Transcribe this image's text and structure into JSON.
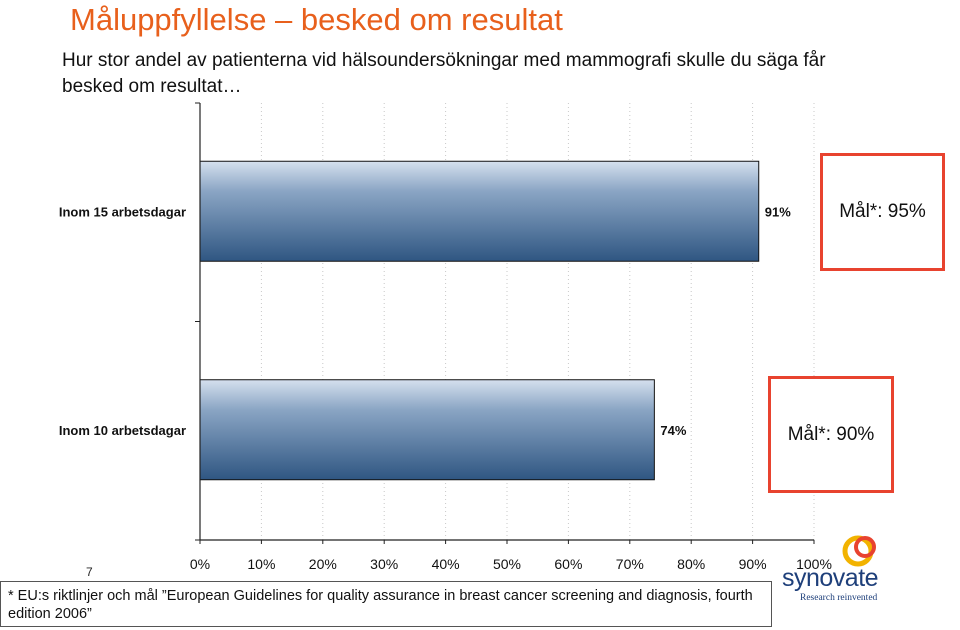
{
  "title": "Måluppfyllelse – besked om resultat",
  "subtitle": "Hur stor andel av patienterna vid hälsoundersökningar med mammografi skulle du säga får besked om resultat…",
  "chart_data": {
    "type": "bar",
    "orientation": "horizontal",
    "categories": [
      "Inom 15 arbetsdagar",
      "Inom 10 arbetsdagar"
    ],
    "values": [
      91,
      74
    ],
    "value_labels": [
      "91%",
      "74%"
    ],
    "xlim": [
      0,
      100
    ],
    "xticks": [
      0,
      10,
      20,
      30,
      40,
      50,
      60,
      70,
      80,
      90,
      100
    ],
    "xtick_labels": [
      "0%",
      "10%",
      "20%",
      "30%",
      "40%",
      "50%",
      "60%",
      "70%",
      "80%",
      "90%",
      "100%"
    ],
    "grid": "vertical dotted",
    "bar_color": "#4a6e97"
  },
  "goals": [
    "Mål*: 95%",
    "Mål*: 90%"
  ],
  "page_number": "7",
  "footnote": "* EU:s riktlinjer och mål ”European Guidelines for quality assurance in breast cancer screening and diagnosis, fourth edition 2006”",
  "logo": {
    "word": "synovate",
    "tagline": "Research reinvented"
  },
  "colors": {
    "title": "#e8601c",
    "goal_border": "#e8432f",
    "logo": "#1e3f7a"
  }
}
